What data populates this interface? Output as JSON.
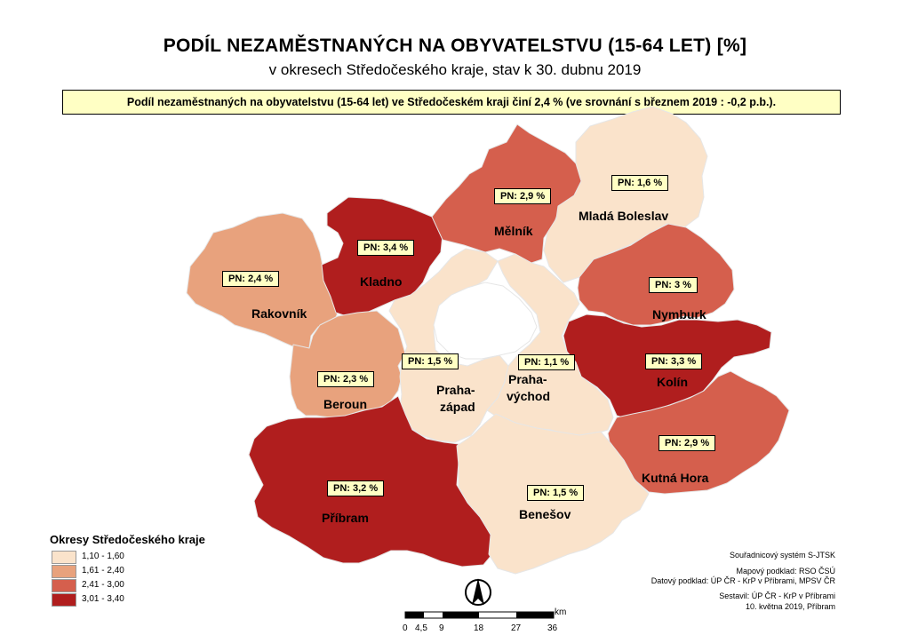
{
  "title": "PODÍL NEZAMĚSTNANÝCH NA OBYVATELSTVU (15-64 LET) [%]",
  "subtitle": "v okresech Středočeského kraje, stav k 30. dubnu 2019",
  "info_box": "Podíl nezaměstnaných na obyvatelstvu (15-64 let) ve Středočeském kraji činí 2,4 % (ve srovnání s březnem 2019 :  -0,2 p.b.).",
  "districts": {
    "rakovnik": {
      "name": "Rakovník",
      "pn": "PN: 2,4 %",
      "value": 2.4,
      "color": "#e8a27d"
    },
    "kladno": {
      "name": "Kladno",
      "pn": "PN: 3,4 %",
      "value": 3.4,
      "color": "#b01e1e"
    },
    "melnik": {
      "name": "Mělník",
      "pn": "PN: 2,9 %",
      "value": 2.9,
      "color": "#d55f4d"
    },
    "mlada_boleslav": {
      "name": "Mladá Boleslav",
      "pn": "PN: 1,6 %",
      "value": 1.6,
      "color": "#fae3cb"
    },
    "nymburk": {
      "name": "Nymburk",
      "pn": "PN: 3 %",
      "value": 3.0,
      "color": "#d55f4d"
    },
    "kolin": {
      "name": "Kolín",
      "pn": "PN: 3,3 %",
      "value": 3.3,
      "color": "#b01e1e"
    },
    "kutna_hora": {
      "name": "Kutná Hora",
      "pn": "PN: 2,9 %",
      "value": 2.9,
      "color": "#d55f4d"
    },
    "beroun": {
      "name": "Beroun",
      "pn": "PN: 2,3 %",
      "value": 2.3,
      "color": "#e8a27d"
    },
    "praha_zapad": {
      "name_line1": "Praha-",
      "name_line2": "západ",
      "pn": "PN: 1,5 %",
      "value": 1.5,
      "color": "#fae3cb"
    },
    "praha_vychod": {
      "name_line1": "Praha-",
      "name_line2": "východ",
      "pn": "PN: 1,1 %",
      "value": 1.1,
      "color": "#fae3cb"
    },
    "pribram": {
      "name": "Příbram",
      "pn": "PN: 3,2 %",
      "value": 3.2,
      "color": "#b01e1e"
    },
    "benesov": {
      "name": "Benešov",
      "pn": "PN: 1,5 %",
      "value": 1.5,
      "color": "#fae3cb"
    }
  },
  "legend": {
    "title": "Okresy Středočeského kraje",
    "items": [
      {
        "label": "1,10 - 1,60",
        "color": "#fae3cb"
      },
      {
        "label": "1,61 - 2,40",
        "color": "#e8a27d"
      },
      {
        "label": "2,41 - 3,00",
        "color": "#d55f4d"
      },
      {
        "label": "3,01 - 3,40",
        "color": "#b01e1e"
      }
    ]
  },
  "credits": {
    "line1": "Souřadnicový systém S-JTSK",
    "line2": "Mapový podklad:  RSO ČSÚ",
    "line3": "Datový podklad: ÚP ČR - KrP v Příbrami, MPSV ČR",
    "line4": "Sestavil: ÚP ČR - KrP v Příbrami",
    "line5": "10. května 2019, Příbram"
  },
  "scale": {
    "unit": "km",
    "ticks": [
      "0",
      "4,5",
      "9",
      "18",
      "27",
      "36"
    ]
  },
  "north_arrow": {
    "icon": "north-arrow-icon",
    "label": "N"
  }
}
